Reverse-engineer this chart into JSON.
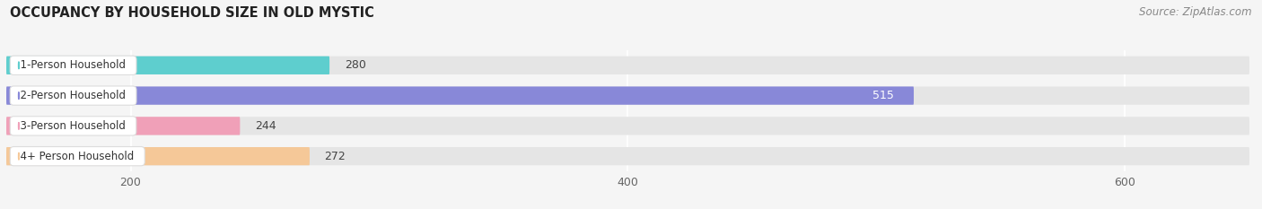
{
  "title": "OCCUPANCY BY HOUSEHOLD SIZE IN OLD MYSTIC",
  "source": "Source: ZipAtlas.com",
  "categories": [
    "1-Person Household",
    "2-Person Household",
    "3-Person Household",
    "4+ Person Household"
  ],
  "values": [
    280,
    515,
    244,
    272
  ],
  "bar_colors": [
    "#5ecece",
    "#8888d8",
    "#f0a0b8",
    "#f5c898"
  ],
  "label_border_colors": [
    "#5ecece",
    "#8888d8",
    "#f0a0b8",
    "#f5c898"
  ],
  "xlim": [
    150,
    650
  ],
  "xticks": [
    200,
    400,
    600
  ],
  "background_color": "#f5f5f5",
  "bar_background_color": "#e5e5e5",
  "title_fontsize": 10.5,
  "source_fontsize": 8.5,
  "bar_height": 0.6,
  "value_label_inside": [
    false,
    true,
    false,
    false
  ]
}
